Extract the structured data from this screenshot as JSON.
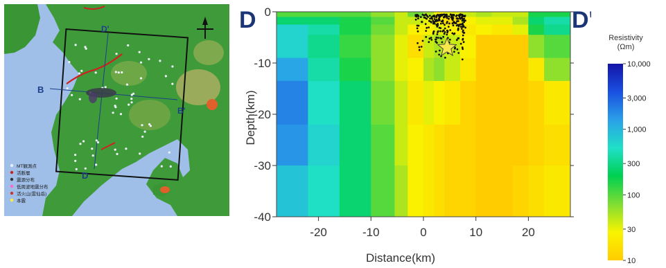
{
  "map": {
    "labels": {
      "b_start": "B",
      "b_end": "B'",
      "d_start": "D",
      "d_end": "D'"
    },
    "legend": [
      {
        "text": "MT観測点",
        "color": "#e8eef8"
      },
      {
        "text": "活断層",
        "color": "#cc2222"
      },
      {
        "text": "震源分布",
        "color": "#333333"
      },
      {
        "text": "低周波地震分布",
        "color": "#ff66cc"
      },
      {
        "text": "活火山(雲仙岳)",
        "color": "#cc3333"
      },
      {
        "text": "本震",
        "color": "#ffee33"
      }
    ]
  },
  "chart_data": [
    {
      "type": "heatmap",
      "title": "",
      "profile_start_label": "D",
      "profile_end_label": "D'",
      "xlabel": "Distance(km)",
      "ylabel": "Depth(km)",
      "xlim": [
        -28,
        28
      ],
      "ylim": [
        -40,
        0
      ],
      "xticks": [
        "-20",
        "-10",
        "0",
        "10",
        "20"
      ],
      "xtick_values": [
        -20,
        -10,
        0,
        10,
        20
      ],
      "yticks": [
        "0",
        "-10",
        "-20",
        "-30",
        "-40"
      ],
      "ytick_values": [
        0,
        -10,
        -20,
        -30,
        -40
      ],
      "x_edges": [
        -28,
        -22,
        -16,
        -10,
        -5.5,
        -3,
        0,
        2,
        4,
        7,
        10,
        13,
        17,
        20,
        23,
        28
      ],
      "depth_edges": [
        0,
        -1,
        -2.5,
        -4.5,
        -9,
        -13.5,
        -22,
        -30,
        -40
      ],
      "log10_resistivity": [
        [
          2.0,
          2.0,
          2.0,
          1.8,
          1.6,
          1.9,
          1.7,
          1.4,
          1.5,
          1.6,
          1.7,
          1.6,
          1.6,
          2.2,
          2.2
        ],
        [
          2.4,
          2.4,
          2.2,
          2.0,
          1.6,
          1.6,
          1.5,
          1.4,
          1.2,
          1.4,
          1.5,
          1.5,
          1.7,
          2.4,
          2.6
        ],
        [
          2.8,
          2.6,
          2.2,
          1.9,
          1.6,
          1.4,
          1.4,
          1.5,
          1.4,
          1.3,
          1.4,
          1.3,
          1.5,
          2.2,
          2.5
        ],
        [
          2.8,
          2.5,
          2.1,
          1.8,
          1.5,
          1.2,
          1.6,
          1.7,
          1.6,
          1.4,
          0.8,
          0.6,
          0.8,
          1.8,
          2.0
        ],
        [
          3.1,
          2.6,
          2.2,
          1.8,
          1.5,
          1.4,
          1.7,
          1.8,
          1.6,
          1.3,
          1.0,
          0.8,
          0.9,
          1.3,
          1.8
        ],
        [
          3.3,
          2.7,
          2.4,
          1.9,
          1.6,
          1.3,
          1.5,
          1.4,
          1.3,
          1.1,
          1.0,
          0.9,
          0.9,
          1.1,
          1.3
        ],
        [
          3.2,
          2.8,
          2.4,
          2.0,
          1.6,
          1.4,
          1.3,
          1.2,
          1.1,
          1.1,
          1.0,
          0.9,
          1.0,
          1.1,
          1.2
        ],
        [
          2.9,
          2.7,
          2.4,
          2.0,
          1.7,
          1.4,
          1.3,
          1.2,
          1.1,
          1.1,
          1.0,
          1.0,
          1.1,
          1.2,
          1.3
        ]
      ],
      "mainshock": {
        "x": 4.5,
        "depth": -7
      }
    },
    {
      "type": "colorbar",
      "title": "Resistivity\n(Ωm)",
      "ticks": [
        "10,000",
        "3,000",
        "1,000",
        "300",
        "100",
        "30",
        "10"
      ],
      "tick_values": [
        10000,
        3000,
        1000,
        300,
        100,
        30,
        10
      ],
      "range": [
        10,
        10000
      ],
      "scale": "log",
      "colors": [
        "#ffcc00",
        "#f9f400",
        "#7fdd33",
        "#00d050",
        "#20e0c8",
        "#2aa0e8",
        "#1a50e0",
        "#1414a8"
      ]
    }
  ]
}
